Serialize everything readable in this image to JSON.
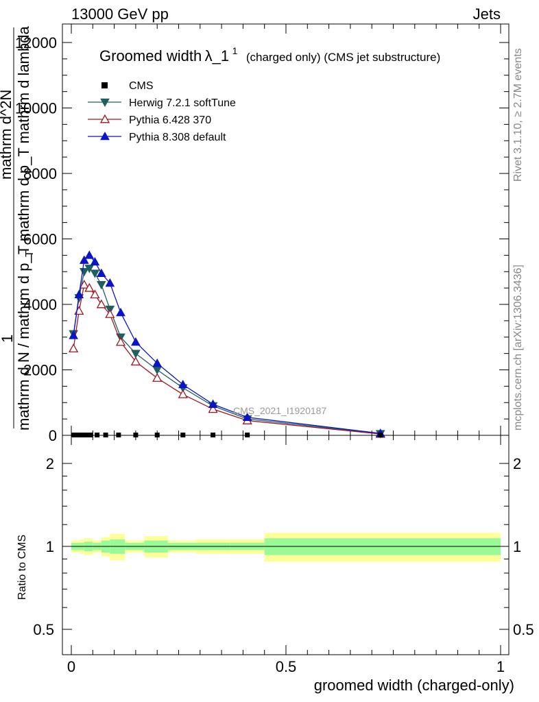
{
  "header": {
    "left": "13000 GeV pp",
    "right": "Jets"
  },
  "side": {
    "rivet": "Rivet 3.1.10, ≥ 2.7M events",
    "mcplots": "mcplots.cern.ch [arXiv:1306.3436]"
  },
  "chart_data": {
    "type": "line",
    "title_main": "Groomed width",
    "title_lambda": "λ_1",
    "title_sup": "1",
    "title_sub": "(charged only) (CMS jet substructure)",
    "analysis_label": "CMS_2021_I1920187",
    "ylabel_num": "1",
    "ylabel_den": "mathrm d N / mathrm d p_T mathrm d p_T mathrm d lambda",
    "ylabel_dN": "mathrm d^2N",
    "ylabel_T": "T",
    "xlabel": "groomed width (charged-only)",
    "ratio_ylabel": "Ratio to CMS",
    "xlim": [
      0,
      1
    ],
    "ylim": [
      0,
      12500
    ],
    "ratio_ylim": [
      0.4,
      2.3
    ],
    "x_ticks": [
      "0",
      "0.5",
      "1"
    ],
    "y_ticks": [
      "0",
      "2000",
      "4000",
      "6000",
      "8000",
      "10000",
      "12000"
    ],
    "ratio_ticks": [
      "0.5",
      "1",
      "2"
    ],
    "cms": {
      "name": "CMS",
      "x": [
        0.005,
        0.015,
        0.025,
        0.035,
        0.045,
        0.06,
        0.08,
        0.11,
        0.15,
        0.2,
        0.26,
        0.33,
        0.41,
        0.72
      ],
      "y": [
        10,
        10,
        10,
        10,
        10,
        10,
        10,
        10,
        10,
        10,
        10,
        10,
        10,
        10
      ]
    },
    "series": [
      {
        "name": "Herwig 7.2.1 softTune",
        "color": "#1f5f5f",
        "marker": "triangle-down-filled",
        "x": [
          0.005,
          0.018,
          0.03,
          0.042,
          0.055,
          0.07,
          0.09,
          0.115,
          0.15,
          0.2,
          0.26,
          0.33,
          0.41,
          0.72
        ],
        "y": [
          3100,
          4200,
          5000,
          5100,
          4950,
          4600,
          3850,
          3000,
          2500,
          2000,
          1450,
          900,
          500,
          50
        ]
      },
      {
        "name": "Pythia 6.428 370",
        "color": "#a0141e",
        "marker": "triangle-up-open",
        "x": [
          0.005,
          0.018,
          0.03,
          0.042,
          0.055,
          0.07,
          0.09,
          0.115,
          0.15,
          0.2,
          0.26,
          0.33,
          0.41,
          0.72
        ],
        "y": [
          2650,
          3800,
          4600,
          4500,
          4300,
          4000,
          3700,
          2850,
          2250,
          1750,
          1250,
          800,
          450,
          40
        ]
      },
      {
        "name": "Pythia 8.308 default",
        "color": "#0a14c8",
        "marker": "triangle-up-filled",
        "x": [
          0.005,
          0.018,
          0.03,
          0.042,
          0.055,
          0.07,
          0.09,
          0.115,
          0.15,
          0.2,
          0.26,
          0.33,
          0.41,
          0.72
        ],
        "y": [
          3050,
          4300,
          5350,
          5500,
          5300,
          4950,
          4650,
          3750,
          2850,
          2200,
          1550,
          950,
          550,
          60
        ]
      }
    ],
    "ratio_bands": [
      {
        "x0": 0.0,
        "x1": 0.02,
        "inner": 0.03,
        "outer": 0.05
      },
      {
        "x0": 0.02,
        "x1": 0.03,
        "inner": 0.03,
        "outer": 0.06
      },
      {
        "x0": 0.03,
        "x1": 0.05,
        "inner": 0.04,
        "outer": 0.07
      },
      {
        "x0": 0.05,
        "x1": 0.07,
        "inner": 0.03,
        "outer": 0.05
      },
      {
        "x0": 0.07,
        "x1": 0.09,
        "inner": 0.05,
        "outer": 0.08
      },
      {
        "x0": 0.09,
        "x1": 0.125,
        "inner": 0.06,
        "outer": 0.11
      },
      {
        "x0": 0.125,
        "x1": 0.17,
        "inner": 0.03,
        "outer": 0.05
      },
      {
        "x0": 0.17,
        "x1": 0.225,
        "inner": 0.05,
        "outer": 0.09
      },
      {
        "x0": 0.225,
        "x1": 0.29,
        "inner": 0.03,
        "outer": 0.05
      },
      {
        "x0": 0.29,
        "x1": 0.37,
        "inner": 0.03,
        "outer": 0.06
      },
      {
        "x0": 0.37,
        "x1": 0.45,
        "inner": 0.03,
        "outer": 0.06
      },
      {
        "x0": 0.45,
        "x1": 1.0,
        "inner": 0.07,
        "outer": 0.12
      }
    ],
    "band_colors": {
      "inner": "#98fb98",
      "outer": "#ffff99"
    }
  }
}
